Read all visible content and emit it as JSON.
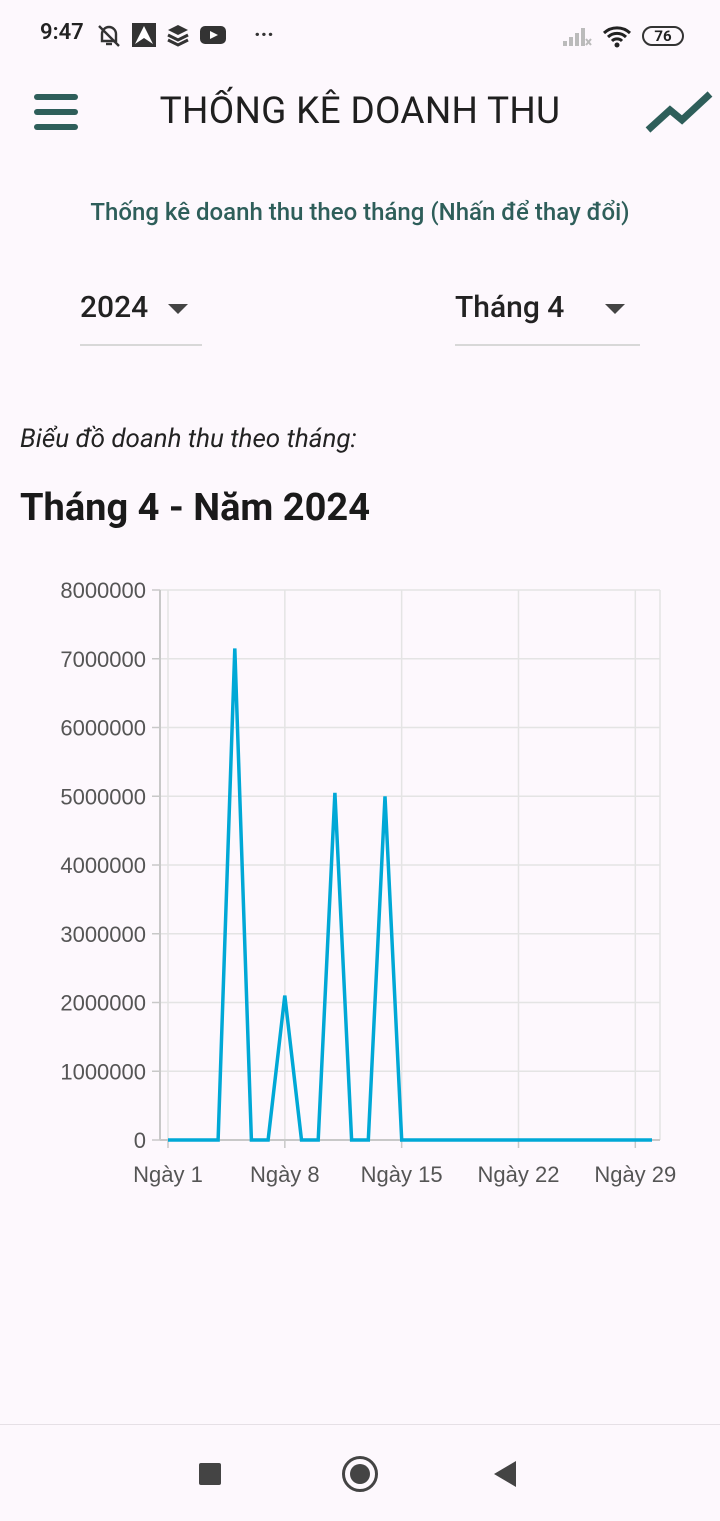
{
  "status_bar": {
    "time": "9:47",
    "battery": "76",
    "more": "···",
    "left_icons": [
      "muted-bell-icon",
      "navigation-app-icon",
      "stack-app-icon",
      "youtube-icon"
    ],
    "right_icons": [
      "signal-icon",
      "wifi-icon",
      "battery-icon"
    ]
  },
  "app_bar": {
    "title": "THỐNG KÊ DOANH THU",
    "menu_icon": "hamburger-menu-icon",
    "action_icon": "trending-up-icon",
    "accent": "#2E5E5A"
  },
  "subtitle": "Thống kê doanh thu theo tháng (Nhấn để thay đổi)",
  "filters": {
    "year": "2024",
    "month": "Tháng 4"
  },
  "chart_caption": "Biểu đồ doanh thu theo tháng:",
  "chart_heading": "Tháng 4 - Năm 2024",
  "chart_data": {
    "type": "line",
    "color": "#00A8D6",
    "x": [
      1,
      2,
      3,
      4,
      5,
      6,
      7,
      8,
      9,
      10,
      11,
      12,
      13,
      14,
      15,
      16,
      17,
      18,
      19,
      20,
      21,
      22,
      23,
      24,
      25,
      26,
      27,
      28,
      29,
      30
    ],
    "values": [
      0,
      0,
      0,
      0,
      7150000,
      0,
      0,
      2100000,
      0,
      0,
      5050000,
      0,
      0,
      5000000,
      0,
      0,
      0,
      0,
      0,
      0,
      0,
      0,
      0,
      0,
      0,
      0,
      0,
      0,
      0,
      0
    ],
    "xticks": [
      1,
      8,
      15,
      22,
      29
    ],
    "xtick_labels": [
      "Ngày 1",
      "Ngày 8",
      "Ngày 15",
      "Ngày 22",
      "Ngày 29"
    ],
    "ytick_labels": [
      "0",
      "1000000",
      "2000000",
      "3000000",
      "4000000",
      "5000000",
      "6000000",
      "7000000",
      "8000000"
    ],
    "ylim": [
      0,
      8000000
    ],
    "grid": true,
    "legend": "none"
  },
  "nav_bar": {
    "icons": [
      "recents-square-icon",
      "home-circle-icon",
      "back-triangle-icon"
    ]
  }
}
